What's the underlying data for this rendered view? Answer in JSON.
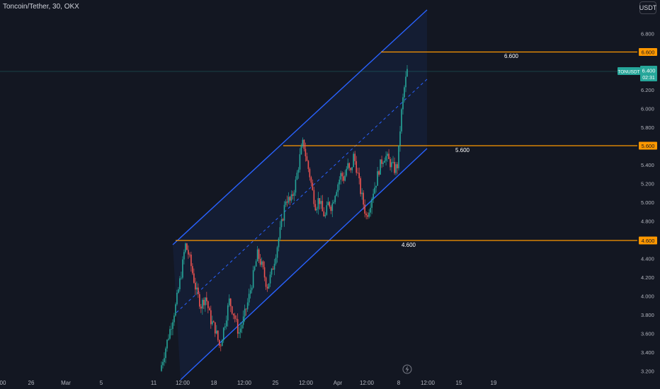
{
  "header": {
    "title": "Toncoin/Tether, 30, OKX",
    "currency": "USDT"
  },
  "chart_data": {
    "type": "candlestick",
    "symbol": "TONUSDT",
    "price_axis": {
      "ticks": [
        "6.800",
        "6.400",
        "6.200",
        "6.000",
        "5.800",
        "5.400",
        "5.200",
        "5.000",
        "4.800",
        "4.400",
        "4.200",
        "4.000",
        "3.800",
        "3.600",
        "3.400",
        "3.200"
      ],
      "ylim": [
        3.18,
        7.0
      ]
    },
    "time_axis": {
      "ticks": [
        "00",
        "26",
        "Mar",
        "5",
        "11",
        "12:00",
        "18",
        "12:00",
        "25",
        "12:00",
        "Apr",
        "12:00",
        "8",
        "12:00",
        "15",
        "19"
      ]
    },
    "horizontal_levels": [
      {
        "value": 6.6,
        "label": "6.600",
        "tag": "6.600"
      },
      {
        "value": 5.6,
        "label": "5.600",
        "tag": "5.600"
      },
      {
        "value": 4.6,
        "label": "4.600",
        "tag": "4.600"
      }
    ],
    "last_price": {
      "symbol": "TONUSDT",
      "value": "6.400",
      "countdown": "02:31"
    },
    "colors": {
      "background": "#131722",
      "up": "#26a69a",
      "down": "#ef5350",
      "channel": "#2962ff",
      "level": "#ff9800",
      "axis_text": "#b2b5be"
    },
    "price_path": [
      [
        0,
        3.2
      ],
      [
        0.5,
        3.55
      ],
      [
        1,
        3.9
      ],
      [
        1.4,
        4.3
      ],
      [
        1.6,
        4.55
      ],
      [
        1.8,
        4.45
      ],
      [
        2,
        4.3
      ],
      [
        2.3,
        4.05
      ],
      [
        2.6,
        3.9
      ],
      [
        2.9,
        4.0
      ],
      [
        3.2,
        3.75
      ],
      [
        3.5,
        3.65
      ],
      [
        3.8,
        3.45
      ],
      [
        4.1,
        3.7
      ],
      [
        4.4,
        3.95
      ],
      [
        4.7,
        3.8
      ],
      [
        5,
        3.6
      ],
      [
        5.3,
        3.75
      ],
      [
        5.6,
        3.95
      ],
      [
        5.9,
        4.2
      ],
      [
        6.2,
        4.45
      ],
      [
        6.5,
        4.3
      ],
      [
        6.8,
        4.1
      ],
      [
        7.1,
        4.25
      ],
      [
        7.4,
        4.5
      ],
      [
        7.7,
        4.75
      ],
      [
        8,
        5.05
      ],
      [
        8.3,
        5.0
      ],
      [
        8.6,
        5.2
      ],
      [
        8.9,
        5.5
      ],
      [
        9.1,
        5.65
      ],
      [
        9.3,
        5.45
      ],
      [
        9.5,
        5.3
      ],
      [
        9.7,
        5.1
      ],
      [
        9.9,
        4.95
      ],
      [
        10.1,
        5.05
      ],
      [
        10.3,
        4.9
      ],
      [
        10.5,
        4.85
      ],
      [
        10.7,
        5.0
      ],
      [
        10.9,
        4.95
      ],
      [
        11.1,
        5.1
      ],
      [
        11.3,
        5.2
      ],
      [
        11.5,
        5.3
      ],
      [
        11.7,
        5.25
      ],
      [
        11.9,
        5.4
      ],
      [
        12.1,
        5.3
      ],
      [
        12.3,
        5.5
      ],
      [
        12.5,
        5.35
      ],
      [
        12.7,
        5.15
      ],
      [
        12.9,
        5.0
      ],
      [
        13.1,
        4.85
      ],
      [
        13.3,
        4.95
      ],
      [
        13.5,
        5.1
      ],
      [
        13.7,
        5.2
      ],
      [
        13.9,
        5.35
      ],
      [
        14.1,
        5.45
      ],
      [
        14.3,
        5.5
      ],
      [
        14.5,
        5.45
      ],
      [
        14.7,
        5.4
      ],
      [
        14.9,
        5.35
      ],
      [
        15.1,
        5.4
      ],
      [
        15.3,
        5.9
      ],
      [
        15.5,
        6.2
      ],
      [
        15.7,
        6.4
      ]
    ]
  }
}
